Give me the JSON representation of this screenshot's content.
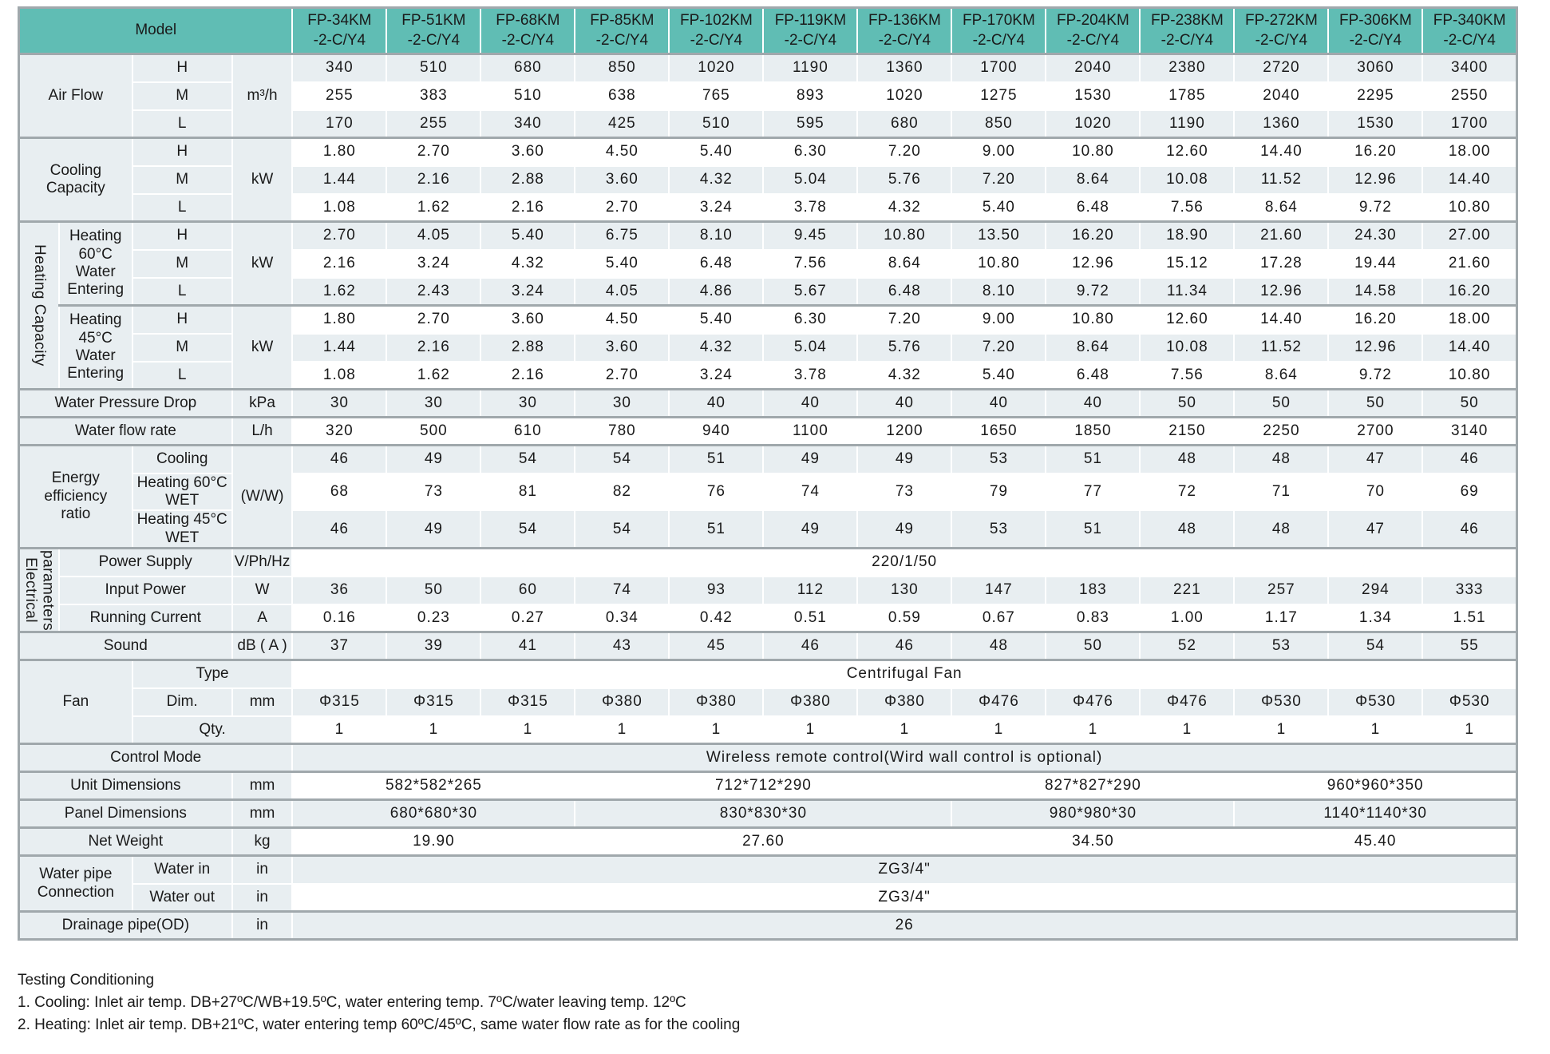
{
  "colors": {
    "header_teal": "#60bdb4",
    "row_shade": "#e8eef1",
    "row_white": "#ffffff",
    "grid_dark": "#a0a8ac",
    "grid_light": "#c8d0d4",
    "text": "#1a1a1a"
  },
  "table": {
    "header": {
      "model_label": "Model",
      "models": [
        "FP-34KM\n-2-C/Y4",
        "FP-51KM\n-2-C/Y4",
        "FP-68KM\n-2-C/Y4",
        "FP-85KM\n-2-C/Y4",
        "FP-102KM\n-2-C/Y4",
        "FP-119KM\n-2-C/Y4",
        "FP-136KM\n-2-C/Y4",
        "FP-170KM\n-2-C/Y4",
        "FP-204KM\n-2-C/Y4",
        "FP-238KM\n-2-C/Y4",
        "FP-272KM\n-2-C/Y4",
        "FP-306KM\n-2-C/Y4",
        "FP-340KM\n-2-C/Y4"
      ]
    },
    "rows": [
      {
        "name": "air-flow-h",
        "shade": true,
        "sec": true,
        "labels": [
          {
            "t": "Air Flow",
            "col": 2,
            "row": 3
          },
          {
            "t": "H"
          },
          {
            "t": "m³/h",
            "row": 3
          }
        ],
        "cells": [
          "340",
          "510",
          "680",
          "850",
          "1020",
          "1190",
          "1360",
          "1700",
          "2040",
          "2380",
          "2720",
          "3060",
          "3400"
        ]
      },
      {
        "name": "air-flow-m",
        "shade": false,
        "labels": [
          {
            "t": "M"
          }
        ],
        "cells": [
          "255",
          "383",
          "510",
          "638",
          "765",
          "893",
          "1020",
          "1275",
          "1530",
          "1785",
          "2040",
          "2295",
          "2550"
        ]
      },
      {
        "name": "air-flow-l",
        "shade": true,
        "labels": [
          {
            "t": "L"
          }
        ],
        "cells": [
          "170",
          "255",
          "340",
          "425",
          "510",
          "595",
          "680",
          "850",
          "1020",
          "1190",
          "1360",
          "1530",
          "1700"
        ]
      },
      {
        "name": "cooling-h",
        "shade": false,
        "sec": true,
        "labels": [
          {
            "t": "Cooling\nCapacity",
            "col": 2,
            "row": 3
          },
          {
            "t": "H"
          },
          {
            "t": "kW",
            "row": 3
          }
        ],
        "cells": [
          "1.80",
          "2.70",
          "3.60",
          "4.50",
          "5.40",
          "6.30",
          "7.20",
          "9.00",
          "10.80",
          "12.60",
          "14.40",
          "16.20",
          "18.00"
        ]
      },
      {
        "name": "cooling-m",
        "shade": true,
        "labels": [
          {
            "t": "M"
          }
        ],
        "cells": [
          "1.44",
          "2.16",
          "2.88",
          "3.60",
          "4.32",
          "5.04",
          "5.76",
          "7.20",
          "8.64",
          "10.08",
          "11.52",
          "12.96",
          "14.40"
        ]
      },
      {
        "name": "cooling-l",
        "shade": false,
        "labels": [
          {
            "t": "L"
          }
        ],
        "cells": [
          "1.08",
          "1.62",
          "2.16",
          "2.70",
          "3.24",
          "3.78",
          "4.32",
          "5.40",
          "6.48",
          "7.56",
          "8.64",
          "9.72",
          "10.80"
        ]
      },
      {
        "name": "heating60-h",
        "shade": true,
        "sec": true,
        "labels": [
          {
            "t": "Heating Capacity",
            "col": 1,
            "row": 6,
            "v": true
          },
          {
            "t": "Heating\n60°C\nWater\nEntering",
            "col": 1,
            "row": 3,
            "left": true
          },
          {
            "t": "H"
          },
          {
            "t": "kW",
            "row": 3
          }
        ],
        "cells": [
          "2.70",
          "4.05",
          "5.40",
          "6.75",
          "8.10",
          "9.45",
          "10.80",
          "13.50",
          "16.20",
          "18.90",
          "21.60",
          "24.30",
          "27.00"
        ]
      },
      {
        "name": "heating60-m",
        "shade": false,
        "labels": [
          {
            "t": "M"
          }
        ],
        "cells": [
          "2.16",
          "3.24",
          "4.32",
          "5.40",
          "6.48",
          "7.56",
          "8.64",
          "10.80",
          "12.96",
          "15.12",
          "17.28",
          "19.44",
          "21.60"
        ]
      },
      {
        "name": "heating60-l",
        "shade": true,
        "labels": [
          {
            "t": "L"
          }
        ],
        "cells": [
          "1.62",
          "2.43",
          "3.24",
          "4.05",
          "4.86",
          "5.67",
          "6.48",
          "8.10",
          "9.72",
          "11.34",
          "12.96",
          "14.58",
          "16.20"
        ]
      },
      {
        "name": "heating45-h",
        "shade": false,
        "sec": true,
        "labels": [
          {
            "t": "Heating\n45°C\nWater\nEntering",
            "col": 1,
            "row": 3,
            "left": true
          },
          {
            "t": "H"
          },
          {
            "t": "kW",
            "row": 3
          }
        ],
        "cells": [
          "1.80",
          "2.70",
          "3.60",
          "4.50",
          "5.40",
          "6.30",
          "7.20",
          "9.00",
          "10.80",
          "12.60",
          "14.40",
          "16.20",
          "18.00"
        ]
      },
      {
        "name": "heating45-m",
        "shade": true,
        "labels": [
          {
            "t": "M"
          }
        ],
        "cells": [
          "1.44",
          "2.16",
          "2.88",
          "3.60",
          "4.32",
          "5.04",
          "5.76",
          "7.20",
          "8.64",
          "10.08",
          "11.52",
          "12.96",
          "14.40"
        ]
      },
      {
        "name": "heating45-l",
        "shade": false,
        "labels": [
          {
            "t": "L"
          }
        ],
        "cells": [
          "1.08",
          "1.62",
          "2.16",
          "2.70",
          "3.24",
          "3.78",
          "4.32",
          "5.40",
          "6.48",
          "7.56",
          "8.64",
          "9.72",
          "10.80"
        ]
      },
      {
        "name": "water-pressure-drop",
        "shade": true,
        "sec": true,
        "labels": [
          {
            "t": "Water Pressure Drop",
            "col": 3
          },
          {
            "t": "kPa"
          }
        ],
        "cells": [
          "30",
          "30",
          "30",
          "30",
          "40",
          "40",
          "40",
          "40",
          "40",
          "50",
          "50",
          "50",
          "50"
        ]
      },
      {
        "name": "water-flow-rate",
        "shade": false,
        "sec": true,
        "labels": [
          {
            "t": "Water flow rate",
            "col": 3
          },
          {
            "t": "L/h"
          }
        ],
        "cells": [
          "320",
          "500",
          "610",
          "780",
          "940",
          "1100",
          "1200",
          "1650",
          "1850",
          "2150",
          "2250",
          "2700",
          "3140"
        ]
      },
      {
        "name": "eer-cooling",
        "shade": true,
        "sec": true,
        "labels": [
          {
            "t": "Energy\nefficiency\nratio",
            "col": 2,
            "row": 3,
            "left": true
          },
          {
            "t": "Cooling",
            "sm": true,
            "left": true
          },
          {
            "t": "(W/W)",
            "row": 3
          }
        ],
        "cells": [
          "46",
          "49",
          "54",
          "54",
          "51",
          "49",
          "49",
          "53",
          "51",
          "48",
          "48",
          "47",
          "46"
        ]
      },
      {
        "name": "eer-heating60",
        "shade": false,
        "labels": [
          {
            "t": "Heating 60°C WET",
            "sm": true,
            "left": true
          }
        ],
        "cells": [
          "68",
          "73",
          "81",
          "82",
          "76",
          "74",
          "73",
          "79",
          "77",
          "72",
          "71",
          "70",
          "69"
        ]
      },
      {
        "name": "eer-heating45",
        "shade": true,
        "labels": [
          {
            "t": "Heating 45°C WET",
            "sm": true,
            "left": true
          }
        ],
        "cells": [
          "46",
          "49",
          "54",
          "54",
          "51",
          "49",
          "49",
          "53",
          "51",
          "48",
          "48",
          "47",
          "46"
        ]
      },
      {
        "name": "power-supply",
        "shade": false,
        "sec": true,
        "labels": [
          {
            "t": "Electrical\nparameters",
            "col": 1,
            "row": 3,
            "v": true
          },
          {
            "t": "Power Supply",
            "col": 2,
            "left": true
          },
          {
            "t": "V/Ph/Hz",
            "sm": true
          }
        ],
        "cells": [
          {
            "t": "220/1/50",
            "span": 13
          }
        ]
      },
      {
        "name": "input-power",
        "shade": true,
        "labels": [
          {
            "t": "Input Power",
            "col": 2,
            "left": true
          },
          {
            "t": "W"
          }
        ],
        "cells": [
          "36",
          "50",
          "60",
          "74",
          "93",
          "112",
          "130",
          "147",
          "183",
          "221",
          "257",
          "294",
          "333"
        ]
      },
      {
        "name": "running-current",
        "shade": false,
        "labels": [
          {
            "t": "Running Current",
            "col": 2,
            "left": true
          },
          {
            "t": "A"
          }
        ],
        "cells": [
          "0.16",
          "0.23",
          "0.27",
          "0.34",
          "0.42",
          "0.51",
          "0.59",
          "0.67",
          "0.83",
          "1.00",
          "1.17",
          "1.34",
          "1.51"
        ]
      },
      {
        "name": "sound",
        "shade": true,
        "sec": true,
        "labels": [
          {
            "t": "Sound",
            "col": 3
          },
          {
            "t": "dB ( A )",
            "sm": true
          }
        ],
        "cells": [
          "37",
          "39",
          "41",
          "43",
          "45",
          "46",
          "46",
          "48",
          "50",
          "52",
          "53",
          "54",
          "55"
        ]
      },
      {
        "name": "fan-type",
        "shade": false,
        "sec": true,
        "labels": [
          {
            "t": "Fan",
            "col": 2,
            "row": 3
          },
          {
            "t": "Type",
            "col": 2
          }
        ],
        "cells": [
          {
            "t": "Centrifugal Fan",
            "span": 13
          }
        ]
      },
      {
        "name": "fan-dim",
        "shade": true,
        "labels": [
          {
            "t": "Dim."
          },
          {
            "t": "mm"
          }
        ],
        "cells": [
          "Φ315",
          "Φ315",
          "Φ315",
          "Φ380",
          "Φ380",
          "Φ380",
          "Φ380",
          "Φ476",
          "Φ476",
          "Φ476",
          "Φ530",
          "Φ530",
          "Φ530"
        ]
      },
      {
        "name": "fan-qty",
        "shade": false,
        "labels": [
          {
            "t": "Qty.",
            "col": 2
          }
        ],
        "cells": [
          "1",
          "1",
          "1",
          "1",
          "1",
          "1",
          "1",
          "1",
          "1",
          "1",
          "1",
          "1",
          "1"
        ]
      },
      {
        "name": "control-mode",
        "shade": true,
        "sec": true,
        "labels": [
          {
            "t": "Control Mode",
            "col": 4
          }
        ],
        "cells": [
          {
            "t": "Wireless remote control(Wird wall control is optional)",
            "span": 13
          }
        ]
      },
      {
        "name": "unit-dimensions",
        "shade": false,
        "sec": true,
        "labels": [
          {
            "t": "Unit Dimensions",
            "col": 3
          },
          {
            "t": "mm"
          }
        ],
        "cells": [
          {
            "t": "582*582*265",
            "span": 3
          },
          {
            "t": "712*712*290",
            "span": 4
          },
          {
            "t": "827*827*290",
            "span": 3
          },
          {
            "t": "960*960*350",
            "span": 3
          }
        ]
      },
      {
        "name": "panel-dimensions",
        "shade": true,
        "sec": true,
        "labels": [
          {
            "t": "Panel Dimensions",
            "col": 3
          },
          {
            "t": "mm"
          }
        ],
        "cells": [
          {
            "t": "680*680*30",
            "span": 3
          },
          {
            "t": "830*830*30",
            "span": 4
          },
          {
            "t": "980*980*30",
            "span": 3
          },
          {
            "t": "1140*1140*30",
            "span": 3
          }
        ]
      },
      {
        "name": "net-weight",
        "shade": false,
        "sec": true,
        "labels": [
          {
            "t": "Net Weight",
            "col": 3
          },
          {
            "t": "kg"
          }
        ],
        "cells": [
          {
            "t": "19.90",
            "span": 3
          },
          {
            "t": "27.60",
            "span": 4
          },
          {
            "t": "34.50",
            "span": 3
          },
          {
            "t": "45.40",
            "span": 3
          }
        ]
      },
      {
        "name": "water-in",
        "shade": true,
        "sec": true,
        "labels": [
          {
            "t": "Water pipe\nConnection",
            "col": 2,
            "row": 2,
            "left": true
          },
          {
            "t": "Water in",
            "left": true
          },
          {
            "t": "in"
          }
        ],
        "cells": [
          {
            "t": "ZG3/4\"",
            "span": 13
          }
        ]
      },
      {
        "name": "water-out",
        "shade": false,
        "labels": [
          {
            "t": "Water out",
            "left": true
          },
          {
            "t": "in"
          }
        ],
        "cells": [
          {
            "t": "ZG3/4\"",
            "span": 13
          }
        ]
      },
      {
        "name": "drainage-pipe",
        "shade": true,
        "sec": true,
        "labels": [
          {
            "t": "Drainage pipe(OD)",
            "col": 3
          },
          {
            "t": "in"
          }
        ],
        "cells": [
          {
            "t": "26",
            "span": 13
          }
        ]
      }
    ]
  },
  "footnotes": {
    "title": "Testing Conditioning",
    "lines": [
      "1. Cooling: Inlet air temp. DB+27ºC/WB+19.5ºC, water entering temp. 7ºC/water leaving temp. 12ºC",
      "2. Heating: Inlet air temp. DB+21ºC, water entering temp 60ºC/45ºC, same water flow rate as for the cooling"
    ]
  }
}
